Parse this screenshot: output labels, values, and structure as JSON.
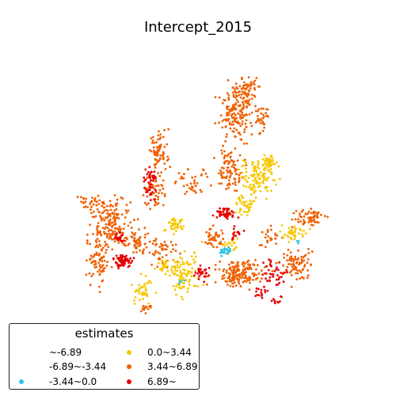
{
  "title": "Intercept_2015",
  "legend": {
    "title": "estimates",
    "items": [
      {
        "label": "~-6.89",
        "color": ""
      },
      {
        "label": "-6.89~-3.44",
        "color": ""
      },
      {
        "label": "-3.44~0.0",
        "color": "#2ec4e6"
      },
      {
        "label": "0.0~3.44",
        "color": "#f5c800"
      },
      {
        "label": "3.44~6.89",
        "color": "#f06000"
      },
      {
        "label": "6.89~",
        "color": "#e60000"
      }
    ]
  },
  "colors": {
    "class_-3.44~0.0": "#2ec4e6",
    "class_0.0~3.44": "#f5c800",
    "class_3.44~6.89": "#f06000",
    "class_6.89~": "#e60000"
  }
}
